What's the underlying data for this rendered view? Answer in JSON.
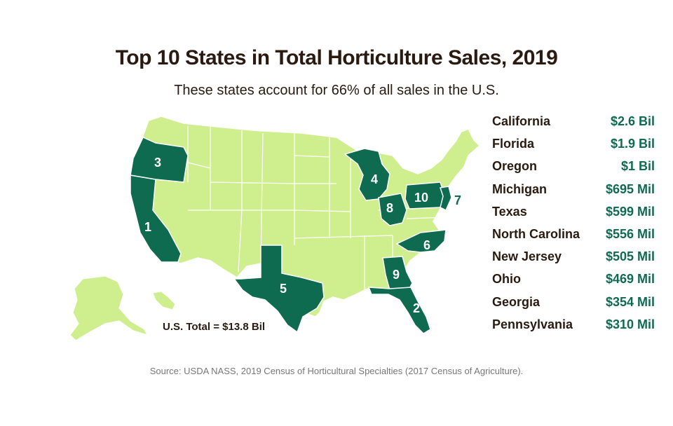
{
  "title": "Top 10 States in Total Horticulture Sales, 2019",
  "subtitle": "These states account for 66% of all sales in the U.S.",
  "total_label": "U.S. Total = $13.8 Bil",
  "source": "Source: USDA NASS, 2019 Census of Horticultural Specialties (2017 Census of Agriculture).",
  "colors": {
    "top10": "#0e6b4f",
    "other": "#cfef8e",
    "border": "#ffffff",
    "value_text": "#0e6b4f",
    "title_text": "#2a1a10"
  },
  "states": [
    {
      "rank": "1",
      "name": "California",
      "value": "$2.6 Bil"
    },
    {
      "rank": "2",
      "name": "Florida",
      "value": "$1.9 Bil"
    },
    {
      "rank": "3",
      "name": "Oregon",
      "value": "$1 Bil"
    },
    {
      "rank": "4",
      "name": "Michigan",
      "value": "$695 Mil"
    },
    {
      "rank": "5",
      "name": "Texas",
      "value": "$599 Mil"
    },
    {
      "rank": "6",
      "name": "North Carolina",
      "value": "$556 Mil"
    },
    {
      "rank": "7",
      "name": "New Jersey",
      "value": "$505 Mil"
    },
    {
      "rank": "8",
      "name": "Ohio",
      "value": "$469 Mil"
    },
    {
      "rank": "9",
      "name": "Georgia",
      "value": "$354 Mil"
    },
    {
      "rank": "10",
      "name": "Pennsylvania",
      "value": "$310 Mil"
    }
  ]
}
